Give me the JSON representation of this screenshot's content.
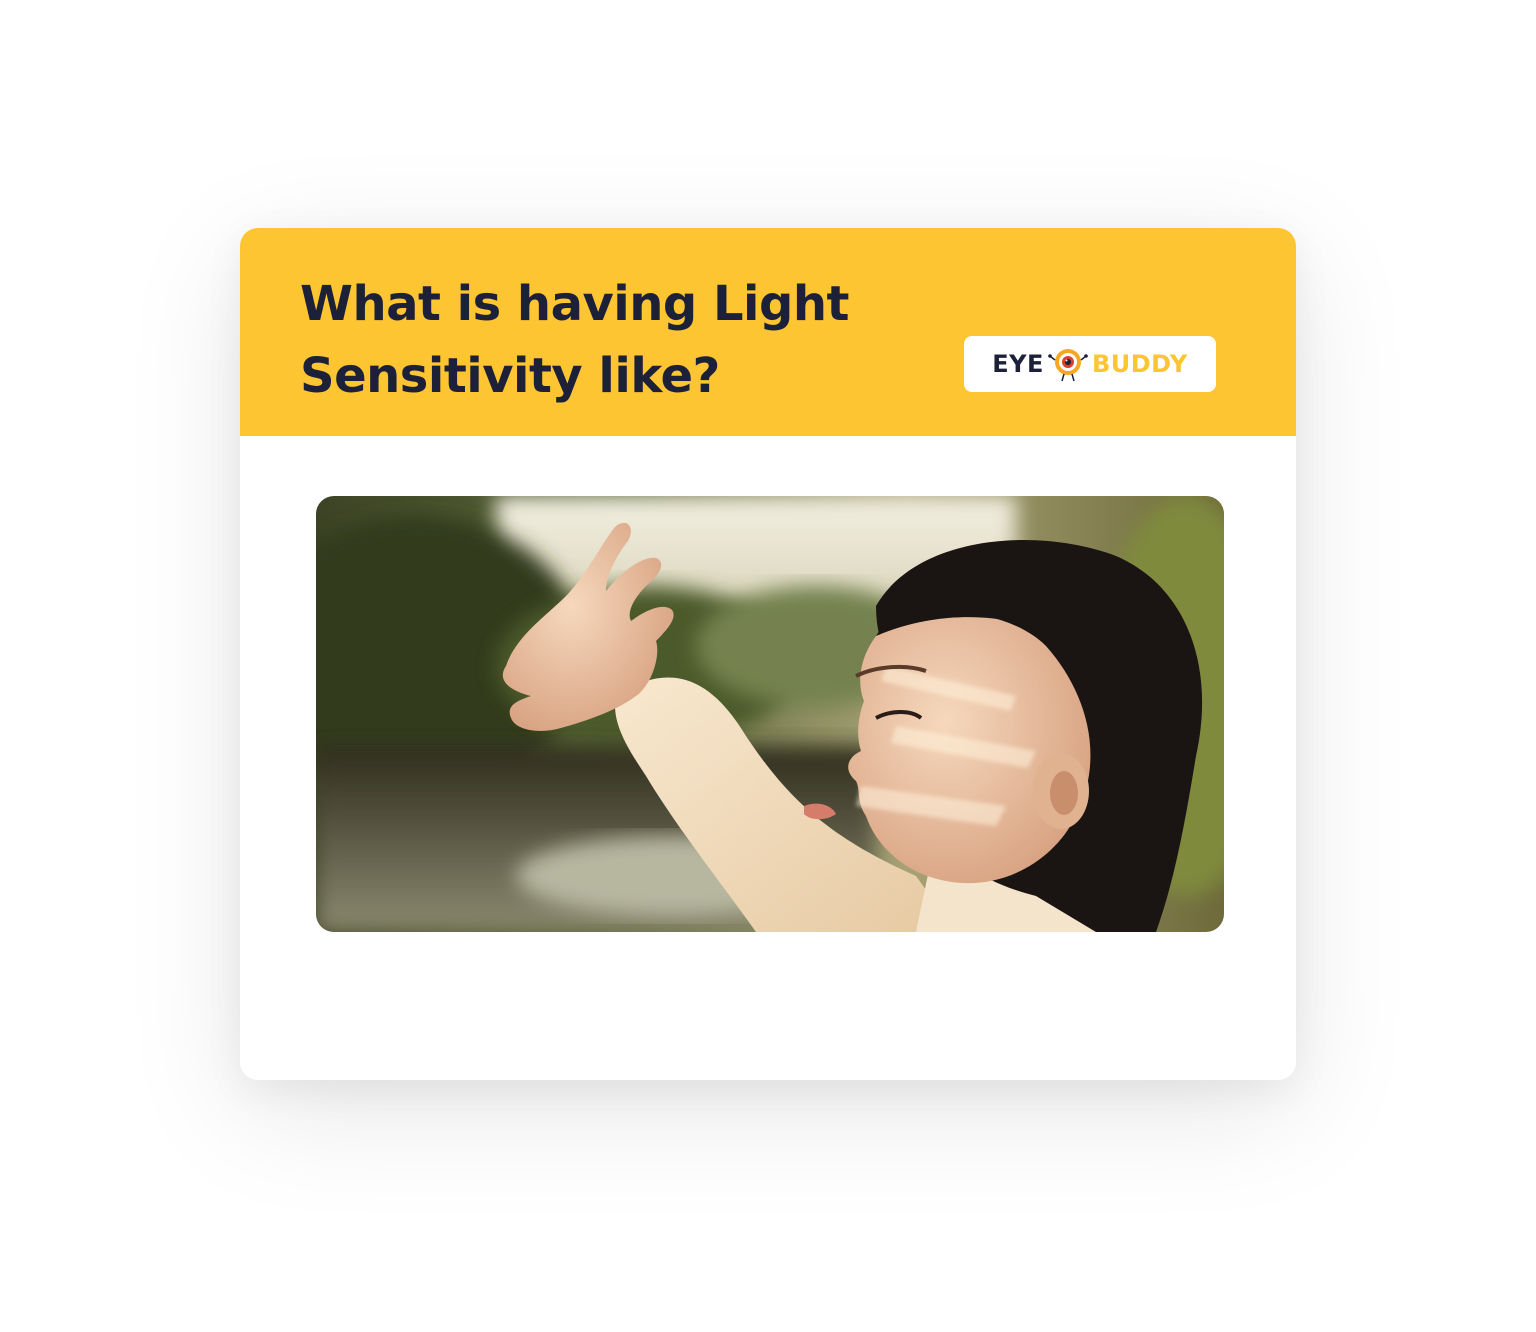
{
  "card": {
    "title": "What is having Light Sensitivity like?",
    "accent_color": "#fcc531",
    "title_color": "#1c2038"
  },
  "logo": {
    "word_left": "EYE",
    "word_right": "BUDDY",
    "mascot_icon": "eye-mascot-icon"
  },
  "photo": {
    "subject": "photo-child-shielding-eyes-from-sun"
  }
}
